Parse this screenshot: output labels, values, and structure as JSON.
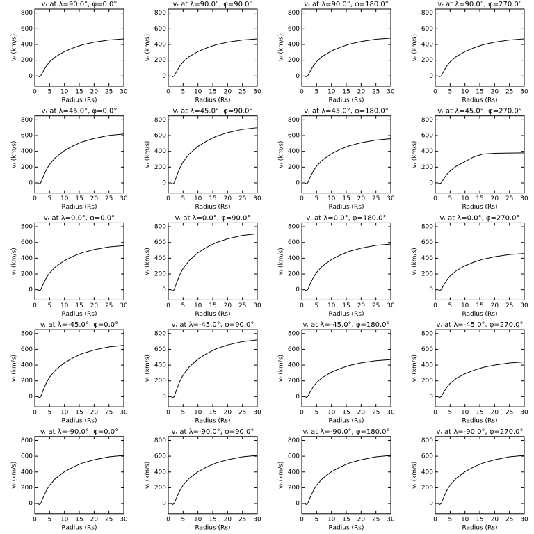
{
  "chart_data": [
    {
      "type": "line",
      "title": "vᵣ at λ=90.0°, φ=0.0°",
      "xlabel": "Radius (Rs)",
      "ylabel": "vᵣ (km/s)",
      "color": "#000000",
      "x": [
        1,
        1.5,
        2,
        3,
        4,
        5,
        7,
        10,
        13,
        16,
        20,
        25,
        30
      ],
      "values": [
        0,
        -9,
        0,
        71,
        132,
        179,
        244,
        310,
        357,
        395,
        428,
        456,
        470
      ],
      "xlim": [
        0,
        30
      ],
      "ylim": [
        -130,
        850
      ],
      "xticks": [
        0,
        5,
        10,
        15,
        20,
        25,
        30
      ],
      "yticks": [
        0,
        200,
        400,
        600,
        800
      ]
    },
    {
      "type": "line",
      "title": "vᵣ at λ=90.0°, φ=90.0°",
      "xlabel": "Radius (Rs)",
      "ylabel": "vᵣ (km/s)",
      "color": "#000000",
      "x": [
        1,
        1.5,
        2,
        3,
        4,
        5,
        7,
        10,
        13,
        16,
        20,
        25,
        30
      ],
      "values": [
        0,
        -9,
        0,
        71,
        132,
        179,
        244,
        310,
        357,
        395,
        428,
        456,
        470
      ],
      "xlim": [
        0,
        30
      ],
      "ylim": [
        -130,
        850
      ],
      "xticks": [
        0,
        5,
        10,
        15,
        20,
        25,
        30
      ],
      "yticks": [
        0,
        200,
        400,
        600,
        800
      ]
    },
    {
      "type": "line",
      "title": "vᵣ at λ=90.0°, φ=180.0°",
      "xlabel": "Radius (Rs)",
      "ylabel": "vᵣ (km/s)",
      "color": "#000000",
      "x": [
        1,
        1.5,
        2,
        3,
        4,
        5,
        7,
        10,
        13,
        16,
        20,
        25,
        30
      ],
      "values": [
        0,
        -10,
        0,
        72,
        134,
        182,
        250,
        317,
        365,
        403,
        437,
        466,
        480
      ],
      "xlim": [
        0,
        30
      ],
      "ylim": [
        -130,
        850
      ],
      "xticks": [
        0,
        5,
        10,
        15,
        20,
        25,
        30
      ],
      "yticks": [
        0,
        200,
        400,
        600,
        800
      ]
    },
    {
      "type": "line",
      "title": "vᵣ at λ=90.0°, φ=270.0°",
      "xlabel": "Radius (Rs)",
      "ylabel": "vᵣ (km/s)",
      "color": "#000000",
      "x": [
        1,
        1.5,
        2,
        3,
        4,
        5,
        7,
        10,
        13,
        16,
        20,
        25,
        30
      ],
      "values": [
        0,
        -9,
        0,
        71,
        132,
        179,
        244,
        310,
        357,
        395,
        428,
        456,
        470
      ],
      "xlim": [
        0,
        30
      ],
      "ylim": [
        -130,
        850
      ],
      "xticks": [
        0,
        5,
        10,
        15,
        20,
        25,
        30
      ],
      "yticks": [
        0,
        200,
        400,
        600,
        800
      ]
    },
    {
      "type": "line",
      "title": "vᵣ at λ=45.0°, φ=0.0°",
      "xlabel": "Radius (Rs)",
      "ylabel": "vᵣ (km/s)",
      "color": "#000000",
      "x": [
        1,
        1.5,
        2,
        3,
        4,
        5,
        7,
        10,
        13,
        16,
        20,
        25,
        30
      ],
      "values": [
        0,
        -12,
        0,
        93,
        174,
        236,
        322,
        409,
        471,
        521,
        564,
        601,
        620
      ],
      "xlim": [
        0,
        30
      ],
      "ylim": [
        -130,
        850
      ],
      "xticks": [
        0,
        5,
        10,
        15,
        20,
        25,
        30
      ],
      "yticks": [
        0,
        200,
        400,
        600,
        800
      ]
    },
    {
      "type": "line",
      "title": "vᵣ at λ=45.0°, φ=90.0°",
      "xlabel": "Radius (Rs)",
      "ylabel": "vᵣ (km/s)",
      "color": "#000000",
      "x": [
        1,
        1.5,
        2,
        3,
        4,
        5,
        7,
        10,
        13,
        16,
        20,
        25,
        30
      ],
      "values": [
        0,
        -14,
        0,
        105,
        196,
        266,
        364,
        462,
        532,
        588,
        637,
        679,
        700
      ],
      "xlim": [
        0,
        30
      ],
      "ylim": [
        -130,
        850
      ],
      "xticks": [
        0,
        5,
        10,
        15,
        20,
        25,
        30
      ],
      "yticks": [
        0,
        200,
        400,
        600,
        800
      ]
    },
    {
      "type": "line",
      "title": "vᵣ at λ=45.0°, φ=180.0°",
      "xlabel": "Radius (Rs)",
      "ylabel": "vᵣ (km/s)",
      "color": "#000000",
      "x": [
        1,
        1.5,
        2,
        3,
        4,
        5,
        7,
        10,
        13,
        16,
        20,
        25,
        30
      ],
      "values": [
        0,
        -11,
        0,
        84,
        157,
        213,
        291,
        370,
        426,
        470,
        510,
        543,
        560
      ],
      "xlim": [
        0,
        30
      ],
      "ylim": [
        -130,
        850
      ],
      "xticks": [
        0,
        5,
        10,
        15,
        20,
        25,
        30
      ],
      "yticks": [
        0,
        200,
        400,
        600,
        800
      ]
    },
    {
      "type": "line",
      "title": "vᵣ at λ=45.0°, φ=270.0°",
      "xlabel": "Radius (Rs)",
      "ylabel": "vᵣ (km/s)",
      "color": "#000000",
      "x": [
        1,
        1.5,
        2,
        3,
        4,
        5,
        7,
        10,
        13,
        16,
        20,
        25,
        30
      ],
      "values": [
        0,
        -8,
        0,
        60,
        112,
        152,
        210,
        270,
        330,
        365,
        375,
        378,
        380
      ],
      "xlim": [
        0,
        30
      ],
      "ylim": [
        -130,
        850
      ],
      "xticks": [
        0,
        5,
        10,
        15,
        20,
        25,
        30
      ],
      "yticks": [
        0,
        200,
        400,
        600,
        800
      ]
    },
    {
      "type": "line",
      "title": "vᵣ at λ=0.0°, φ=0.0°",
      "xlabel": "Radius (Rs)",
      "ylabel": "vᵣ (km/s)",
      "color": "#000000",
      "x": [
        1,
        1.5,
        2,
        3,
        4,
        5,
        7,
        10,
        13,
        16,
        20,
        25,
        30
      ],
      "values": [
        0,
        -11,
        0,
        84,
        157,
        213,
        291,
        370,
        426,
        470,
        510,
        543,
        560
      ],
      "xlim": [
        0,
        30
      ],
      "ylim": [
        -130,
        850
      ],
      "xticks": [
        0,
        5,
        10,
        15,
        20,
        25,
        30
      ],
      "yticks": [
        0,
        200,
        400,
        600,
        800
      ]
    },
    {
      "type": "line",
      "title": "vᵣ at λ=0.0°, φ=90.0°",
      "xlabel": "Radius (Rs)",
      "ylabel": "vᵣ (km/s)",
      "color": "#000000",
      "x": [
        1,
        1.5,
        2,
        3,
        4,
        5,
        7,
        10,
        13,
        16,
        20,
        25,
        30
      ],
      "values": [
        0,
        -14,
        0,
        107,
        199,
        270,
        369,
        469,
        540,
        596,
        646,
        689,
        710
      ],
      "xlim": [
        0,
        30
      ],
      "ylim": [
        -130,
        850
      ],
      "xticks": [
        0,
        5,
        10,
        15,
        20,
        25,
        30
      ],
      "yticks": [
        0,
        200,
        400,
        600,
        800
      ]
    },
    {
      "type": "line",
      "title": "vᵣ at λ=0.0°, φ=180.0°",
      "xlabel": "Radius (Rs)",
      "ylabel": "vᵣ (km/s)",
      "color": "#000000",
      "x": [
        1,
        1.5,
        2,
        3,
        4,
        5,
        7,
        10,
        13,
        16,
        20,
        25,
        30
      ],
      "values": [
        0,
        -12,
        0,
        87,
        162,
        220,
        302,
        383,
        441,
        487,
        528,
        563,
        580
      ],
      "xlim": [
        0,
        30
      ],
      "ylim": [
        -130,
        850
      ],
      "xticks": [
        0,
        5,
        10,
        15,
        20,
        25,
        30
      ],
      "yticks": [
        0,
        200,
        400,
        600,
        800
      ]
    },
    {
      "type": "line",
      "title": "vᵣ at λ=0.0°, φ=270.0°",
      "xlabel": "Radius (Rs)",
      "ylabel": "vᵣ (km/s)",
      "color": "#000000",
      "x": [
        1,
        1.5,
        2,
        3,
        4,
        5,
        7,
        10,
        13,
        16,
        20,
        25,
        30
      ],
      "values": [
        0,
        -9,
        0,
        69,
        129,
        175,
        239,
        304,
        350,
        386,
        419,
        446,
        460
      ],
      "xlim": [
        0,
        30
      ],
      "ylim": [
        -130,
        850
      ],
      "xticks": [
        0,
        5,
        10,
        15,
        20,
        25,
        30
      ],
      "yticks": [
        0,
        200,
        400,
        600,
        800
      ]
    },
    {
      "type": "line",
      "title": "vᵣ at λ=-45.0°, φ=0.0°",
      "xlabel": "Radius (Rs)",
      "ylabel": "vᵣ (km/s)",
      "color": "#000000",
      "x": [
        1,
        1.5,
        2,
        3,
        4,
        5,
        7,
        10,
        13,
        16,
        20,
        25,
        30
      ],
      "values": [
        0,
        -13,
        0,
        98,
        182,
        247,
        338,
        429,
        494,
        546,
        592,
        631,
        650
      ],
      "xlim": [
        0,
        30
      ],
      "ylim": [
        -130,
        850
      ],
      "xticks": [
        0,
        5,
        10,
        15,
        20,
        25,
        30
      ],
      "yticks": [
        0,
        200,
        400,
        600,
        800
      ]
    },
    {
      "type": "line",
      "title": "vᵣ at λ=-45.0°, φ=90.0°",
      "xlabel": "Radius (Rs)",
      "ylabel": "vᵣ (km/s)",
      "color": "#000000",
      "x": [
        1,
        1.5,
        2,
        3,
        4,
        5,
        7,
        10,
        13,
        16,
        20,
        25,
        30
      ],
      "values": [
        0,
        -14,
        0,
        108,
        202,
        274,
        374,
        475,
        547,
        605,
        655,
        698,
        720
      ],
      "xlim": [
        0,
        30
      ],
      "ylim": [
        -130,
        850
      ],
      "xticks": [
        0,
        5,
        10,
        15,
        20,
        25,
        30
      ],
      "yticks": [
        0,
        200,
        400,
        600,
        800
      ]
    },
    {
      "type": "line",
      "title": "vᵣ at λ=-45.0°, φ=180.0°",
      "xlabel": "Radius (Rs)",
      "ylabel": "vᵣ (km/s)",
      "color": "#000000",
      "x": [
        1,
        1.5,
        2,
        3,
        4,
        5,
        7,
        10,
        13,
        16,
        20,
        25,
        30
      ],
      "values": [
        0,
        -9,
        0,
        71,
        132,
        179,
        244,
        310,
        357,
        395,
        428,
        456,
        470
      ],
      "xlim": [
        0,
        30
      ],
      "ylim": [
        -130,
        850
      ],
      "xticks": [
        0,
        5,
        10,
        15,
        20,
        25,
        30
      ],
      "yticks": [
        0,
        200,
        400,
        600,
        800
      ]
    },
    {
      "type": "line",
      "title": "vᵣ at λ=-45.0°, φ=270.0°",
      "xlabel": "Radius (Rs)",
      "ylabel": "vᵣ (km/s)",
      "color": "#000000",
      "x": [
        1,
        1.5,
        2,
        3,
        4,
        5,
        7,
        10,
        13,
        16,
        20,
        25,
        30
      ],
      "values": [
        0,
        -9,
        0,
        66,
        123,
        167,
        229,
        290,
        334,
        370,
        400,
        427,
        440
      ],
      "xlim": [
        0,
        30
      ],
      "ylim": [
        -130,
        850
      ],
      "xticks": [
        0,
        5,
        10,
        15,
        20,
        25,
        30
      ],
      "yticks": [
        0,
        200,
        400,
        600,
        800
      ]
    },
    {
      "type": "line",
      "title": "vᵣ at λ=-90.0°, φ=0.0°",
      "xlabel": "Radius (Rs)",
      "ylabel": "vᵣ (km/s)",
      "color": "#000000",
      "x": [
        1,
        1.5,
        2,
        3,
        4,
        5,
        7,
        10,
        13,
        16,
        20,
        25,
        30
      ],
      "values": [
        0,
        -12,
        0,
        92,
        171,
        232,
        317,
        403,
        464,
        512,
        555,
        592,
        610
      ],
      "xlim": [
        0,
        30
      ],
      "ylim": [
        -130,
        850
      ],
      "xticks": [
        0,
        5,
        10,
        15,
        20,
        25,
        30
      ],
      "yticks": [
        0,
        200,
        400,
        600,
        800
      ]
    },
    {
      "type": "line",
      "title": "vᵣ at λ=-90.0°, φ=90.0°",
      "xlabel": "Radius (Rs)",
      "ylabel": "vᵣ (km/s)",
      "color": "#000000",
      "x": [
        1,
        1.5,
        2,
        3,
        4,
        5,
        7,
        10,
        13,
        16,
        20,
        25,
        30
      ],
      "values": [
        0,
        -12,
        0,
        92,
        171,
        232,
        317,
        403,
        464,
        512,
        555,
        592,
        610
      ],
      "xlim": [
        0,
        30
      ],
      "ylim": [
        -130,
        850
      ],
      "xticks": [
        0,
        5,
        10,
        15,
        20,
        25,
        30
      ],
      "yticks": [
        0,
        200,
        400,
        600,
        800
      ]
    },
    {
      "type": "line",
      "title": "vᵣ at λ=-90.0°, φ=180.0°",
      "xlabel": "Radius (Rs)",
      "ylabel": "vᵣ (km/s)",
      "color": "#000000",
      "x": [
        1,
        1.5,
        2,
        3,
        4,
        5,
        7,
        10,
        13,
        16,
        20,
        25,
        30
      ],
      "values": [
        0,
        -12,
        0,
        92,
        171,
        232,
        317,
        403,
        464,
        512,
        555,
        592,
        610
      ],
      "xlim": [
        0,
        30
      ],
      "ylim": [
        -130,
        850
      ],
      "xticks": [
        0,
        5,
        10,
        15,
        20,
        25,
        30
      ],
      "yticks": [
        0,
        200,
        400,
        600,
        800
      ]
    },
    {
      "type": "line",
      "title": "vᵣ at λ=-90.0°, φ=270.0°",
      "xlabel": "Radius (Rs)",
      "ylabel": "vᵣ (km/s)",
      "color": "#000000",
      "x": [
        1,
        1.5,
        2,
        3,
        4,
        5,
        7,
        10,
        13,
        16,
        20,
        25,
        30
      ],
      "values": [
        0,
        -12,
        0,
        92,
        171,
        232,
        317,
        403,
        464,
        512,
        555,
        592,
        610
      ],
      "xlim": [
        0,
        30
      ],
      "ylim": [
        -130,
        850
      ],
      "xticks": [
        0,
        5,
        10,
        15,
        20,
        25,
        30
      ],
      "yticks": [
        0,
        200,
        400,
        600,
        800
      ]
    }
  ]
}
